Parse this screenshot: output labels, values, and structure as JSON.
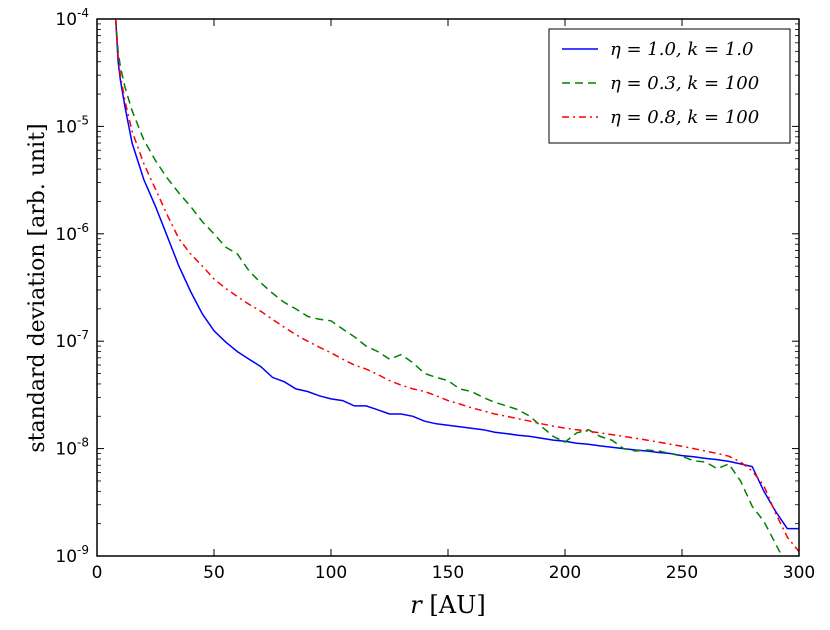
{
  "chart_data": {
    "type": "line",
    "xlabel": "r [AU]",
    "ylabel": "standard deviation [arb. unit]",
    "xlim": [
      0,
      300
    ],
    "ylim": [
      1e-09,
      0.0001
    ],
    "yscale": "log",
    "grid": false,
    "legend_position": "top-right",
    "x_ticks": [
      "0",
      "50",
      "100",
      "150",
      "200",
      "250",
      "300"
    ],
    "y_ticks": [
      {
        "base": "10",
        "exp": "-9"
      },
      {
        "base": "10",
        "exp": "-8"
      },
      {
        "base": "10",
        "exp": "-7"
      },
      {
        "base": "10",
        "exp": "-6"
      },
      {
        "base": "10",
        "exp": "-5"
      },
      {
        "base": "10",
        "exp": "-4"
      }
    ],
    "series": [
      {
        "name": "η = 1.0, k = 1.0",
        "color": "#0000ff",
        "style": "solid",
        "x": [
          8,
          9,
          10,
          12,
          15,
          20,
          25,
          30,
          35,
          40,
          45,
          50,
          55,
          60,
          65,
          70,
          75,
          80,
          85,
          90,
          95,
          100,
          105,
          110,
          115,
          120,
          125,
          130,
          135,
          140,
          145,
          150,
          155,
          160,
          165,
          170,
          175,
          180,
          185,
          190,
          195,
          200,
          205,
          210,
          215,
          220,
          225,
          230,
          235,
          240,
          245,
          250,
          255,
          260,
          265,
          270,
          275,
          280,
          285,
          290,
          295,
          300
        ],
        "y": [
          0.0001,
          4e-05,
          2.7e-05,
          1.5e-05,
          7e-06,
          3.2e-06,
          1.8e-06,
          9.5e-07,
          5e-07,
          2.9e-07,
          1.8e-07,
          1.25e-07,
          9.8e-08,
          8e-08,
          6.8e-08,
          5.8e-08,
          4.6e-08,
          4.2e-08,
          3.6e-08,
          3.4e-08,
          3.1e-08,
          2.9e-08,
          2.8e-08,
          2.5e-08,
          2.5e-08,
          2.3e-08,
          2.1e-08,
          2.1e-08,
          2e-08,
          1.8e-08,
          1.7e-08,
          1.65e-08,
          1.6e-08,
          1.55e-08,
          1.5e-08,
          1.42e-08,
          1.38e-08,
          1.33e-08,
          1.3e-08,
          1.25e-08,
          1.2e-08,
          1.17e-08,
          1.12e-08,
          1.1e-08,
          1.06e-08,
          1.03e-08,
          1e-08,
          9.7e-09,
          9.5e-09,
          9.2e-09,
          9e-09,
          8.6e-09,
          8.4e-09,
          8.1e-09,
          7.9e-09,
          7.6e-09,
          7.2e-09,
          6.8e-09,
          4e-09,
          2.6e-09,
          1.8e-09,
          1.8e-09
        ]
      },
      {
        "name": "η = 0.3, k = 100",
        "color": "#008000",
        "style": "dashed",
        "x": [
          8,
          9,
          10,
          12,
          15,
          20,
          25,
          30,
          35,
          40,
          45,
          50,
          55,
          60,
          65,
          70,
          75,
          80,
          85,
          90,
          95,
          100,
          105,
          110,
          115,
          120,
          125,
          130,
          135,
          140,
          145,
          150,
          155,
          160,
          165,
          170,
          175,
          180,
          185,
          190,
          195,
          200,
          205,
          210,
          215,
          220,
          225,
          230,
          235,
          240,
          245,
          250,
          255,
          260,
          265,
          270,
          275,
          280,
          285,
          290,
          295,
          300
        ],
        "y": [
          0.0001,
          5e-05,
          3.6e-05,
          2.3e-05,
          1.4e-05,
          7.5e-06,
          4.8e-06,
          3.3e-06,
          2.4e-06,
          1.8e-06,
          1.3e-06,
          1e-06,
          7.5e-07,
          6.5e-07,
          4.5e-07,
          3.5e-07,
          2.8e-07,
          2.3e-07,
          2e-07,
          1.7e-07,
          1.6e-07,
          1.55e-07,
          1.3e-07,
          1.1e-07,
          9e-08,
          8e-08,
          6.8e-08,
          7.5e-08,
          6.3e-08,
          5e-08,
          4.6e-08,
          4.3e-08,
          3.6e-08,
          3.4e-08,
          3e-08,
          2.7e-08,
          2.5e-08,
          2.3e-08,
          2e-08,
          1.6e-08,
          1.3e-08,
          1.15e-08,
          1.4e-08,
          1.5e-08,
          1.3e-08,
          1.2e-08,
          1e-08,
          9.5e-09,
          9.7e-09,
          9.5e-09,
          9e-09,
          8.5e-09,
          7.7e-09,
          7.5e-09,
          6.5e-09,
          7.2e-09,
          5e-09,
          2.9e-09,
          2.1e-09,
          1.3e-09,
          8e-10,
          6e-10
        ]
      },
      {
        "name": "η = 0.8, k = 100",
        "color": "#ff0000",
        "style": "dashdot",
        "x": [
          8,
          9,
          10,
          12,
          15,
          20,
          25,
          30,
          35,
          40,
          45,
          50,
          55,
          60,
          65,
          70,
          75,
          80,
          85,
          90,
          95,
          100,
          105,
          110,
          115,
          120,
          125,
          130,
          135,
          140,
          145,
          150,
          155,
          160,
          165,
          170,
          175,
          180,
          185,
          190,
          195,
          200,
          205,
          210,
          215,
          220,
          225,
          230,
          235,
          240,
          245,
          250,
          255,
          260,
          265,
          270,
          275,
          280,
          285,
          290,
          295,
          300
        ],
        "y": [
          0.0001,
          4.5e-05,
          3e-05,
          1.7e-05,
          9e-06,
          4.5e-06,
          2.6e-06,
          1.5e-06,
          9e-07,
          6.5e-07,
          5e-07,
          3.8e-07,
          3.1e-07,
          2.6e-07,
          2.2e-07,
          1.9e-07,
          1.6e-07,
          1.35e-07,
          1.15e-07,
          1e-07,
          8.8e-08,
          7.8e-08,
          6.8e-08,
          6e-08,
          5.5e-08,
          4.9e-08,
          4.3e-08,
          3.9e-08,
          3.6e-08,
          3.4e-08,
          3.1e-08,
          2.8e-08,
          2.6e-08,
          2.4e-08,
          2.25e-08,
          2.1e-08,
          2e-08,
          1.9e-08,
          1.8e-08,
          1.7e-08,
          1.62e-08,
          1.55e-08,
          1.5e-08,
          1.45e-08,
          1.4e-08,
          1.35e-08,
          1.3e-08,
          1.25e-08,
          1.2e-08,
          1.15e-08,
          1.1e-08,
          1.05e-08,
          1e-08,
          9.5e-09,
          9e-09,
          8.5e-09,
          7.5e-09,
          6.2e-09,
          4.5e-09,
          2.5e-09,
          1.5e-09,
          1.1e-09
        ]
      }
    ]
  }
}
